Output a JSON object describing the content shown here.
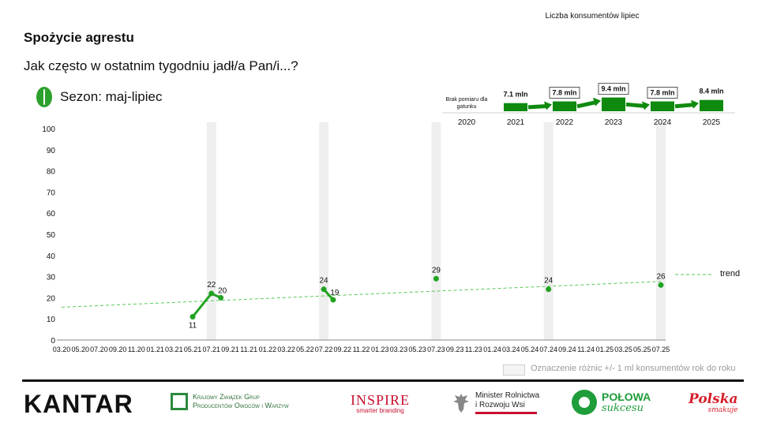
{
  "header": {
    "title": "Spożycie agrestu",
    "question": "Jak często w ostatnim tygodniu jadł/a Pan/i...?",
    "season": "Sezon: maj-lipiec"
  },
  "chart_data": [
    {
      "type": "line",
      "x": [
        "03.20",
        "05.20",
        "07.20",
        "09.20",
        "11.20",
        "01.21",
        "03.21",
        "05.21",
        "07.21",
        "09.21",
        "11.21",
        "01.22",
        "03.22",
        "05.22",
        "07.22",
        "09.22",
        "11.22",
        "01.23",
        "03.23",
        "05.23",
        "07.23",
        "09.23",
        "11.23",
        "01.24",
        "03.24",
        "05.24",
        "07.24",
        "09.24",
        "11.24",
        "01.25",
        "03.25",
        "05.25",
        "07.25"
      ],
      "yticks": [
        "0",
        "10",
        "20",
        "30",
        "40",
        "50",
        "60",
        "70",
        "80",
        "90",
        "100"
      ],
      "ylim": [
        0,
        100
      ],
      "highlighted_periods": [
        "07.21",
        "07.22",
        "07.23",
        "07.24",
        "07.25"
      ],
      "series": [
        {
          "points": [
            {
              "x": "05.21",
              "y": 11
            },
            {
              "x": "07.21",
              "y": 22
            },
            {
              "x": "08.21",
              "y": 20
            }
          ]
        },
        {
          "points": [
            {
              "x": "07.22",
              "y": 24
            },
            {
              "x": "08.22",
              "y": 19
            }
          ]
        },
        {
          "points": [
            {
              "x": "07.23",
              "y": 29
            }
          ]
        },
        {
          "points": [
            {
              "x": "07.24",
              "y": 24
            }
          ]
        },
        {
          "points": [
            {
              "x": "07.25",
              "y": 26
            }
          ]
        }
      ],
      "trend": {
        "name": "trend",
        "start": {
          "x": "03.20",
          "y": 15.5
        },
        "end": {
          "x": "07.25",
          "y": 27.7
        }
      },
      "colors": {
        "series": "#21a321",
        "trend": "#57c957",
        "band": "#efefef"
      }
    },
    {
      "type": "bar",
      "title": "Liczba konsumentów lipiec",
      "categories": [
        "2020",
        "2021",
        "2022",
        "2023",
        "2024",
        "2025"
      ],
      "values": [
        null,
        7.1,
        7.8,
        9.4,
        7.8,
        8.4
      ],
      "labels": [
        "Brak pomiaru dla gatunku",
        "7.1 mln",
        "7.8 mln",
        "9.4 mln",
        "7.8 mln",
        "8.4 mln"
      ],
      "boxed_labels": [
        "9.4 mln",
        "7.8 mln"
      ],
      "colors": {
        "bar": "#0f8a0f"
      }
    }
  ],
  "legend": {
    "difference_note": "Oznaczenie różnic +/- 1 ml konsumentów rok do roku"
  },
  "logos": {
    "kantar": "KANTAR",
    "kzgp_line1": "Krajowy Związek Grup",
    "kzgp_line2": "Producentów Owoców i Warzyw",
    "inspire": "INSPIRE",
    "inspire_sub": "smarter branding",
    "ministry_line1": "Minister Rolnictwa",
    "ministry_line2": "i Rozwoju Wsi",
    "polowa_line1": "POŁOWA",
    "polowa_line2": "sukcesu",
    "polska_line1": "Polska",
    "polska_line2": "smakuje"
  }
}
